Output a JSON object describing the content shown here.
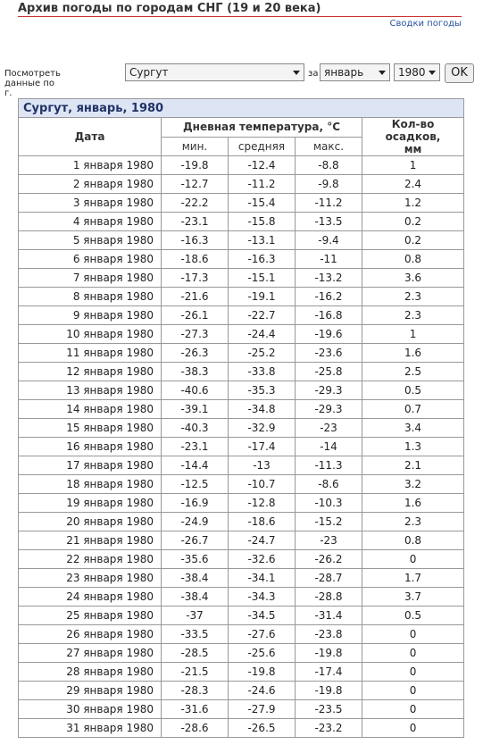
{
  "header": {
    "title": "Архив погоды по городам СНГ (19 и 20 века)",
    "link": "Сводки погоды"
  },
  "form": {
    "label": "Посмотреть данные по г.",
    "city": "Сургут",
    "conj": "за",
    "month": "январь",
    "year": "1980",
    "button": "OK"
  },
  "table": {
    "caption": "Сургут, январь, 1980",
    "head": {
      "date": "Дата",
      "temp": "Дневная температура, °C",
      "precip": "Кол-во осадков, мм",
      "min": "мин.",
      "avg": "средняя",
      "max": "макс."
    },
    "rows": [
      [
        "1 января 1980",
        -19.8,
        -12.4,
        -8.8,
        1
      ],
      [
        "2 января 1980",
        -12.7,
        -11.2,
        -9.8,
        2.4
      ],
      [
        "3 января 1980",
        -22.2,
        -15.4,
        -11.2,
        1.2
      ],
      [
        "4 января 1980",
        -23.1,
        -15.8,
        -13.5,
        0.2
      ],
      [
        "5 января 1980",
        -16.3,
        -13.1,
        -9.4,
        0.2
      ],
      [
        "6 января 1980",
        -18.6,
        -16.3,
        -11,
        0.8
      ],
      [
        "7 января 1980",
        -17.3,
        -15.1,
        -13.2,
        3.6
      ],
      [
        "8 января 1980",
        -21.6,
        -19.1,
        -16.2,
        2.3
      ],
      [
        "9 января 1980",
        -26.1,
        -22.7,
        -16.8,
        2.3
      ],
      [
        "10 января 1980",
        -27.3,
        -24.4,
        -19.6,
        1
      ],
      [
        "11 января 1980",
        -26.3,
        -25.2,
        -23.6,
        1.6
      ],
      [
        "12 января 1980",
        -38.3,
        -33.8,
        -25.8,
        2.5
      ],
      [
        "13 января 1980",
        -40.6,
        -35.3,
        -29.3,
        0.5
      ],
      [
        "14 января 1980",
        -39.1,
        -34.8,
        -29.3,
        0.7
      ],
      [
        "15 января 1980",
        -40.3,
        -32.9,
        -23,
        3.4
      ],
      [
        "16 января 1980",
        -23.1,
        -17.4,
        -14,
        1.3
      ],
      [
        "17 января 1980",
        -14.4,
        -13,
        -11.3,
        2.1
      ],
      [
        "18 января 1980",
        -12.5,
        -10.7,
        -8.6,
        3.2
      ],
      [
        "19 января 1980",
        -16.9,
        -12.8,
        -10.3,
        1.6
      ],
      [
        "20 января 1980",
        -24.9,
        -18.6,
        -15.2,
        2.3
      ],
      [
        "21 января 1980",
        -26.7,
        -24.7,
        -23,
        0.8
      ],
      [
        "22 января 1980",
        -35.6,
        -32.6,
        -26.2,
        0
      ],
      [
        "23 января 1980",
        -38.4,
        -34.1,
        -28.7,
        1.7
      ],
      [
        "24 января 1980",
        -38.4,
        -34.3,
        -28.8,
        3.7
      ],
      [
        "25 января 1980",
        -37,
        -34.5,
        -31.4,
        0.5
      ],
      [
        "26 января 1980",
        -33.5,
        -27.6,
        -23.8,
        0
      ],
      [
        "27 января 1980",
        -28.5,
        -25.6,
        -19.8,
        0
      ],
      [
        "28 января 1980",
        -21.5,
        -19.8,
        -17.4,
        0
      ],
      [
        "29 января 1980",
        -28.3,
        -24.6,
        -19.8,
        0
      ],
      [
        "30 января 1980",
        -31.6,
        -27.9,
        -23.5,
        0
      ],
      [
        "31 января 1980",
        -28.6,
        -26.5,
        -23.2,
        0
      ]
    ]
  }
}
